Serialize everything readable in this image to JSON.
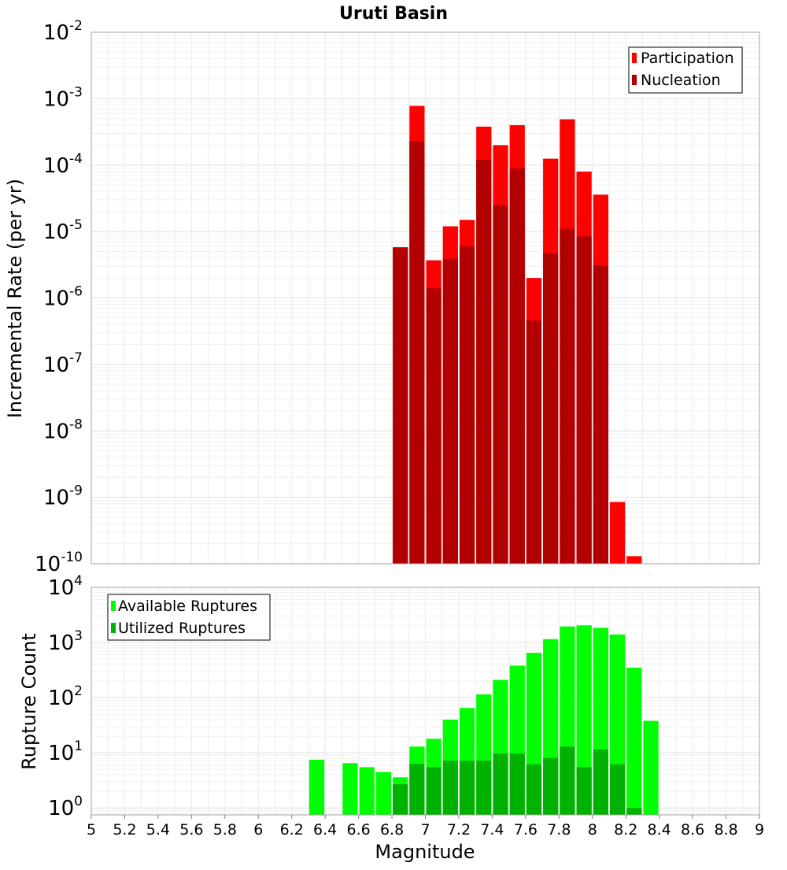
{
  "title": "Uruti Basin",
  "xlabel": "Magnitude",
  "chart_data": [
    {
      "type": "bar",
      "panel": "top",
      "title": "Uruti Basin",
      "xlabel": "Magnitude",
      "ylabel": "Incremental Rate (per yr)",
      "xlim": [
        5,
        9
      ],
      "ylim": [
        1e-10,
        0.01
      ],
      "yscale": "log",
      "grid": true,
      "legend_position": "top-right",
      "bin_width": 0.1,
      "x": [
        6.85,
        6.95,
        7.05,
        7.15,
        7.25,
        7.35,
        7.45,
        7.55,
        7.65,
        7.75,
        7.85,
        7.95,
        8.05,
        8.15,
        8.25
      ],
      "series": [
        {
          "name": "Participation",
          "color": "#ff0000",
          "values": [
            5.8e-06,
            0.00078,
            3.7e-06,
            1.2e-05,
            1.5e-05,
            0.00038,
            0.0002,
            0.0004,
            2e-06,
            0.000125,
            0.00049,
            8e-05,
            3.6e-05,
            8.5e-10,
            1.3e-10
          ]
        },
        {
          "name": "Nucleation",
          "color": "#b20000",
          "values": [
            5.8e-06,
            0.00023,
            1.4e-06,
            3.9e-06,
            6.1e-06,
            0.00012,
            2.5e-05,
            9e-05,
            4.6e-07,
            4.7e-06,
            1.1e-05,
            8.5e-06,
            3.1e-06,
            null,
            null
          ]
        }
      ]
    },
    {
      "type": "bar",
      "panel": "bottom",
      "xlabel": "Magnitude",
      "ylabel": "Rupture Count",
      "xlim": [
        5,
        9
      ],
      "ylim": [
        0.75,
        10000
      ],
      "yscale": "log",
      "grid": true,
      "legend_position": "top-left",
      "bin_width": 0.1,
      "x": [
        6.35,
        6.45,
        6.55,
        6.65,
        6.75,
        6.85,
        6.95,
        7.05,
        7.15,
        7.25,
        7.35,
        7.45,
        7.55,
        7.65,
        7.75,
        7.85,
        7.95,
        8.05,
        8.15,
        8.25,
        8.35
      ],
      "series": [
        {
          "name": "Available Ruptures",
          "color": "#00ff00",
          "values": [
            7.5,
            null,
            6.5,
            5.5,
            4.5,
            3.6,
            13,
            18,
            40,
            65,
            115,
            210,
            380,
            650,
            1150,
            1950,
            2050,
            1850,
            1400,
            350,
            38
          ]
        },
        {
          "name": "Utilized Ruptures",
          "color": "#00b200",
          "values": [
            null,
            null,
            null,
            null,
            null,
            2.7,
            6.3,
            5.5,
            7.2,
            7.2,
            7.2,
            9.7,
            9.7,
            6.2,
            8.1,
            13,
            5.5,
            11.5,
            6.2,
            1,
            null
          ]
        }
      ]
    }
  ],
  "x_ticks": [
    "5",
    "5.2",
    "5.4",
    "5.6",
    "5.8",
    "6",
    "6.2",
    "6.4",
    "6.6",
    "6.8",
    "7",
    "7.2",
    "7.4",
    "7.6",
    "7.8",
    "8",
    "8.2",
    "8.4",
    "8.6",
    "8.8",
    "9"
  ],
  "top_y_ticks": [
    {
      "base": "10",
      "exp": "-2"
    },
    {
      "base": "10",
      "exp": "-3"
    },
    {
      "base": "10",
      "exp": "-4"
    },
    {
      "base": "10",
      "exp": "-5"
    },
    {
      "base": "10",
      "exp": "-6"
    },
    {
      "base": "10",
      "exp": "-7"
    },
    {
      "base": "10",
      "exp": "-8"
    },
    {
      "base": "10",
      "exp": "-9"
    },
    {
      "base": "10",
      "exp": "-10"
    }
  ],
  "bottom_y_ticks": [
    {
      "base": "10",
      "exp": "4"
    },
    {
      "base": "10",
      "exp": "3"
    },
    {
      "base": "10",
      "exp": "2"
    },
    {
      "base": "10",
      "exp": "1"
    },
    {
      "base": "10",
      "exp": "0"
    }
  ]
}
